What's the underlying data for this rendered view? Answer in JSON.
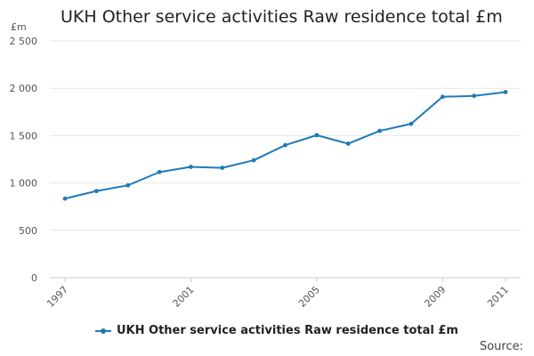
{
  "colors": {
    "series": "#1f7ab8",
    "grid": "#e6e6e6",
    "axis": "#cccccc"
  },
  "source_label": "Source:",
  "chart_data": {
    "type": "line",
    "title": "UKH Other service activities Raw residence total £m",
    "ylabel": "£m",
    "xlabel": "",
    "ylim": [
      0,
      2500
    ],
    "yticks": [
      0,
      500,
      1000,
      1500,
      2000,
      2500
    ],
    "ytick_labels": [
      "0",
      "500",
      "1 000",
      "1 500",
      "2 000",
      "2 500"
    ],
    "xlim": [
      1997,
      2011
    ],
    "xtick_labels": [
      "1997",
      "2001",
      "2005",
      "2009",
      "2011"
    ],
    "grid": true,
    "legend_position": "bottom",
    "series": [
      {
        "name": "UKH Other service activities Raw residence total £m",
        "x": [
          1997,
          1998,
          1999,
          2000,
          2001,
          2002,
          2003,
          2004,
          2005,
          2006,
          2007,
          2008,
          2009,
          2010,
          2011
        ],
        "values": [
          835,
          915,
          975,
          1115,
          1170,
          1160,
          1240,
          1400,
          1505,
          1415,
          1550,
          1625,
          1910,
          1920,
          1960
        ]
      }
    ]
  }
}
